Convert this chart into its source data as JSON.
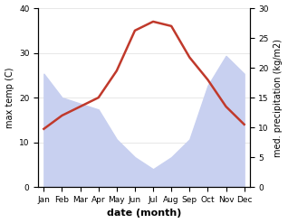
{
  "months": [
    "Jan",
    "Feb",
    "Mar",
    "Apr",
    "May",
    "Jun",
    "Jul",
    "Aug",
    "Sep",
    "Oct",
    "Nov",
    "Dec"
  ],
  "temperature": [
    13.0,
    16.0,
    18.0,
    20.0,
    26.0,
    35.0,
    37.0,
    36.0,
    29.0,
    24.0,
    18.0,
    14.0
  ],
  "precipitation": [
    19.0,
    15.0,
    14.0,
    13.0,
    8.0,
    5.0,
    3.0,
    5.0,
    8.0,
    17.0,
    22.0,
    19.0
  ],
  "temp_color": "#c0392b",
  "precip_fill_color": "#c8d0f0",
  "background_color": "#ffffff",
  "temp_ylim": [
    0,
    40
  ],
  "precip_ylim": [
    0,
    30
  ],
  "temp_yticks": [
    0,
    10,
    20,
    30,
    40
  ],
  "precip_yticks": [
    0,
    5,
    10,
    15,
    20,
    25,
    30
  ],
  "ylabel_left": "max temp (C)",
  "ylabel_right": "med. precipitation (kg/m2)",
  "xlabel": "date (month)",
  "line_width": 1.8,
  "xlabel_fontsize": 8,
  "ylabel_fontsize": 7,
  "tick_fontsize": 6.5
}
